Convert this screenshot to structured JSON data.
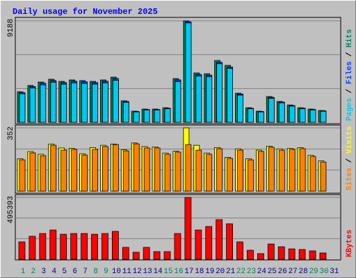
{
  "chart_data": [
    {
      "type": "bar",
      "title": "Daily usage for November 2025",
      "categories": [
        "1",
        "2",
        "3",
        "4",
        "5",
        "6",
        "7",
        "8",
        "9",
        "10",
        "11",
        "12",
        "13",
        "14",
        "15",
        "16",
        "17",
        "18",
        "19",
        "20",
        "21",
        "22",
        "23",
        "24",
        "25",
        "26",
        "27",
        "28",
        "29",
        "30",
        "31"
      ],
      "ylim": [
        0,
        9188
      ],
      "yticks": [
        9188
      ],
      "series": [
        {
          "name": "Hits",
          "color": "#00805c",
          "values": [
            2770,
            3340,
            3650,
            3900,
            3710,
            3840,
            3780,
            3710,
            3840,
            4090,
            1950,
            1010,
            1200,
            1200,
            1320,
            3960,
            9188,
            4470,
            4400,
            5600,
            5160,
            2640,
            1320,
            1010,
            2330,
            1890,
            1570,
            1320,
            1200,
            1070,
            null
          ]
        },
        {
          "name": "Files",
          "color": "#0040ff",
          "values": [
            2690,
            3240,
            3540,
            3780,
            3600,
            3720,
            3670,
            3600,
            3720,
            3970,
            1890,
            980,
            1160,
            1160,
            1280,
            3840,
            9100,
            4340,
            4270,
            5430,
            5010,
            2560,
            1280,
            980,
            2260,
            1830,
            1520,
            1280,
            1160,
            1040,
            null
          ]
        },
        {
          "name": "Pages",
          "color": "#00c8f0",
          "values": [
            2580,
            3110,
            3390,
            3630,
            3450,
            3570,
            3520,
            3450,
            3570,
            3800,
            1810,
            940,
            1120,
            1120,
            1230,
            3680,
            9000,
            4200,
            4130,
            5300,
            4880,
            2460,
            1230,
            940,
            2170,
            1760,
            1460,
            1230,
            1120,
            1000,
            null
          ]
        }
      ]
    },
    {
      "type": "bar",
      "ylim": [
        0,
        352
      ],
      "yticks": [
        352
      ],
      "series": [
        {
          "name": "Visits",
          "color": "#ffff00",
          "values": [
            180,
            220,
            205,
            262,
            240,
            238,
            208,
            242,
            255,
            262,
            230,
            268,
            248,
            245,
            212,
            222,
            352,
            255,
            212,
            242,
            188,
            235,
            180,
            228,
            250,
            235,
            238,
            242,
            200,
            168,
            null
          ]
        },
        {
          "name": "Sites",
          "color": "#ff8000",
          "values": [
            174,
            213,
            197,
            255,
            228,
            232,
            201,
            232,
            248,
            259,
            224,
            263,
            240,
            240,
            205,
            217,
            259,
            228,
            205,
            236,
            182,
            228,
            174,
            221,
            244,
            228,
            232,
            236,
            193,
            162,
            null
          ]
        }
      ]
    },
    {
      "type": "bar",
      "ylim": [
        0,
        495393
      ],
      "yticks": [
        495393
      ],
      "series": [
        {
          "name": "KBytes",
          "color": "#ff0000",
          "values": [
            139000,
            184000,
            206000,
            234000,
            200000,
            206000,
            206000,
            200000,
            206000,
            223000,
            95000,
            56000,
            95000,
            61000,
            61000,
            206000,
            495393,
            234000,
            262000,
            317000,
            284000,
            139000,
            72000,
            45000,
            122000,
            100000,
            83000,
            78000,
            67000,
            50000,
            null
          ]
        }
      ]
    }
  ]
}
